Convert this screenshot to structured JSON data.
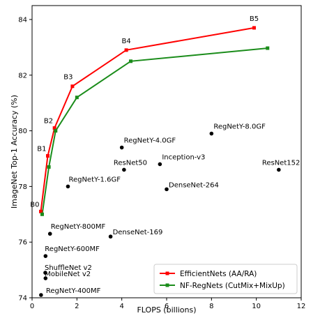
{
  "chart_data": {
    "type": "scatter",
    "xlabel": "FLOPS (billions)",
    "ylabel": "ImageNet Top-1 Accuracy (%)",
    "xlim": [
      0,
      12
    ],
    "ylim": [
      74,
      84.5
    ],
    "xticks": [
      0,
      2,
      4,
      6,
      8,
      10,
      12
    ],
    "yticks": [
      74,
      76,
      78,
      80,
      82,
      84
    ],
    "grid": false,
    "legend_position": "bottom-right",
    "series": [
      {
        "name": "EfficientNets (AA/RA)",
        "color": "#ff0000",
        "marker": "square",
        "points": [
          {
            "x": 0.39,
            "y": 77.1,
            "label": "B0"
          },
          {
            "x": 0.7,
            "y": 79.1,
            "label": "B1"
          },
          {
            "x": 1.0,
            "y": 80.1,
            "label": "B2"
          },
          {
            "x": 1.8,
            "y": 81.6,
            "label": "B3"
          },
          {
            "x": 4.2,
            "y": 82.9,
            "label": "B4"
          },
          {
            "x": 9.9,
            "y": 83.7,
            "label": "B5"
          }
        ]
      },
      {
        "name": "NF-RegNets (CutMix+MixUp)",
        "color": "#1a8c1a",
        "marker": "square",
        "points": [
          {
            "x": 0.45,
            "y": 77.0
          },
          {
            "x": 0.75,
            "y": 78.7
          },
          {
            "x": 1.05,
            "y": 80.0
          },
          {
            "x": 2.0,
            "y": 81.2
          },
          {
            "x": 4.4,
            "y": 82.5
          },
          {
            "x": 10.5,
            "y": 82.97
          }
        ]
      }
    ],
    "others": {
      "color": "#000000",
      "points": [
        {
          "x": 0.4,
          "y": 74.1,
          "label": "RegNetY-400MF"
        },
        {
          "x": 0.6,
          "y": 74.7,
          "label": "MobileNet v2"
        },
        {
          "x": 0.59,
          "y": 74.9,
          "label": "ShuffleNet v2"
        },
        {
          "x": 0.6,
          "y": 75.5,
          "label": "RegNetY-600MF"
        },
        {
          "x": 0.8,
          "y": 76.3,
          "label": "RegNetY-800MF"
        },
        {
          "x": 1.6,
          "y": 78.0,
          "label": "RegNetY-1.6GF"
        },
        {
          "x": 3.5,
          "y": 76.2,
          "label": "DenseNet-169"
        },
        {
          "x": 4.0,
          "y": 79.4,
          "label": "RegNetY-4.0GF"
        },
        {
          "x": 4.1,
          "y": 78.6,
          "label": "ResNet50"
        },
        {
          "x": 5.7,
          "y": 78.8,
          "label": "Inception-v3"
        },
        {
          "x": 6.0,
          "y": 77.9,
          "label": "DenseNet-264"
        },
        {
          "x": 8.0,
          "y": 79.9,
          "label": "RegNetY-8.0GF"
        },
        {
          "x": 11.0,
          "y": 78.6,
          "label": "ResNet152"
        }
      ]
    }
  }
}
